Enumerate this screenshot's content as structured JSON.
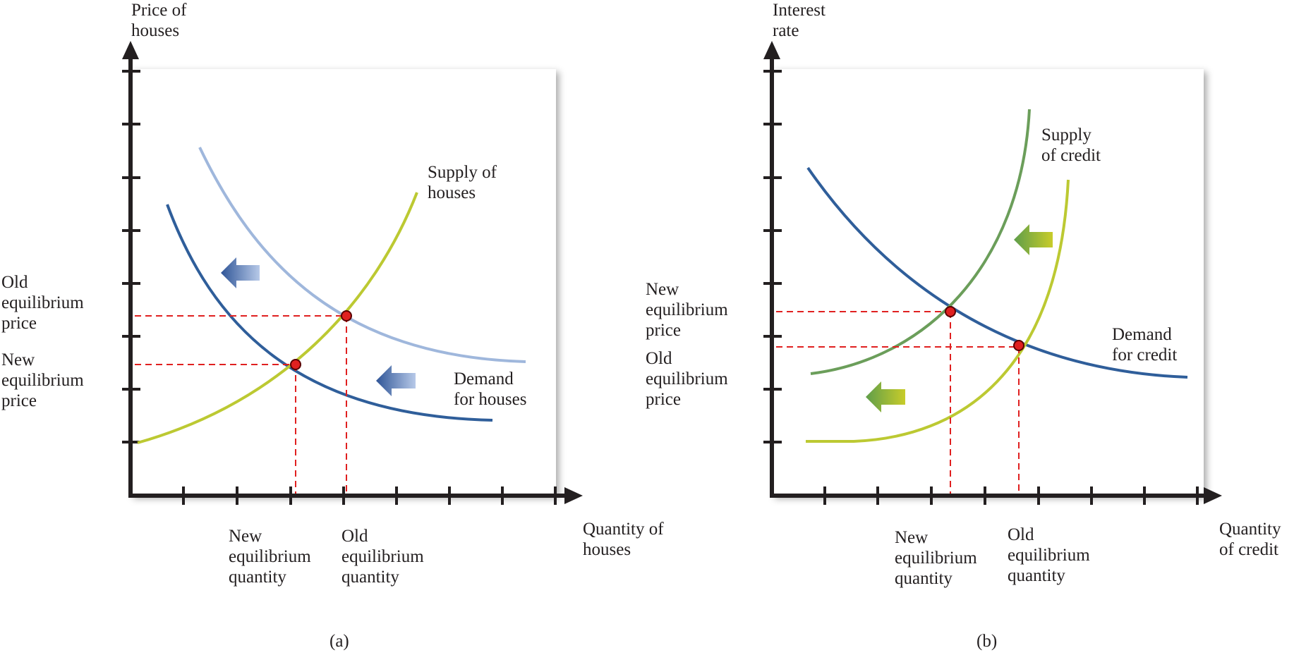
{
  "colors": {
    "demand_new": "#2f5e9a",
    "demand_old": "#9fb7dc",
    "supply_houses": "#bcc932",
    "supply_credit_new": "#6b9e5a",
    "supply_credit_old": "#bcc932",
    "equilibrium_dot": "#e02020",
    "guide_line": "#e02020",
    "axis": "#231f20",
    "arrow_blue": "#3a64a8",
    "arrow_green": "#9cc23a"
  },
  "panel_a": {
    "y_axis_label": "Price of\nhouses",
    "x_axis_label": "Quantity of\nhouses",
    "supply_label": "Supply of\nhouses",
    "demand_label": "Demand\nfor houses",
    "old_price_label": "Old\nequilibrium\nprice",
    "new_price_label": "New\nequilibrium\nprice",
    "new_qty_label": "New\nequilibrium\nquantity",
    "old_qty_label": "Old\nequilibrium\nquantity",
    "caption": "(a)"
  },
  "panel_b": {
    "y_axis_label": "Interest\nrate",
    "x_axis_label": "Quantity\nof credit",
    "supply_label": "Supply\nof credit",
    "demand_label": "Demand\nfor credit",
    "new_price_label": "New\nequilibrium\nprice",
    "old_price_label": "Old\nequilibrium\nprice",
    "new_qty_label": "New\nequilibrium\nquantity",
    "old_qty_label": "Old\nequilibrium\nquantity",
    "caption": "(b)"
  }
}
